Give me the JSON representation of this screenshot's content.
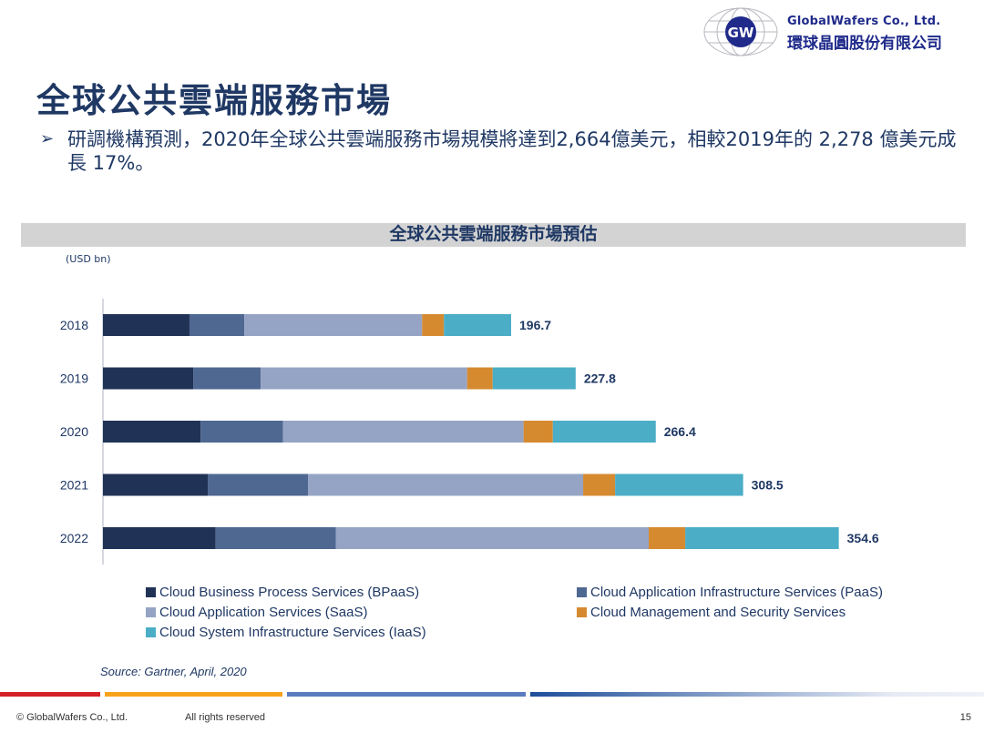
{
  "logo": {
    "mark": "GW",
    "name_en": "GlobalWafers Co., Ltd.",
    "name_zh": "環球晶圓股份有限公司"
  },
  "title": "全球公共雲端服務市場",
  "bullet": {
    "icon": "arrow-bullet-icon",
    "text": "研調機構預測，2020年全球公共雲端服務市場規模將達到2,664億美元，相較2019年的 2,278 億美元成長 17%。"
  },
  "chart_data": {
    "type": "bar",
    "orientation": "horizontal",
    "stacked": true,
    "title": "全球公共雲端服務市場預估",
    "ylabel": "(USD bn)",
    "xlabel": "",
    "categories": [
      "2018",
      "2019",
      "2020",
      "2021",
      "2022"
    ],
    "totals": [
      "196.7",
      "227.8",
      "266.4",
      "308.5",
      "354.6"
    ],
    "total_values": [
      196.7,
      227.8,
      266.4,
      308.5,
      354.6
    ],
    "xlim": [
      0,
      360
    ],
    "grid": false,
    "legend_position": "bottom",
    "series": [
      {
        "name": "Cloud Business Process Services (BPaaS)",
        "color": "#203356",
        "values": [
          41.7,
          43.5,
          47.1,
          50.5,
          54.2
        ]
      },
      {
        "name": "Cloud Application Infrastructure Services (PaaS)",
        "color": "#4f6892",
        "values": [
          26.4,
          32.5,
          39.6,
          48.3,
          58.0
        ]
      },
      {
        "name": "Cloud Application Services (SaaS)",
        "color": "#95a4c4",
        "values": [
          85.7,
          99.5,
          116.0,
          132.6,
          150.8
        ]
      },
      {
        "name": "Cloud Management and Security Services",
        "color": "#d68a30",
        "values": [
          10.5,
          12.3,
          14.1,
          15.4,
          17.6
        ]
      },
      {
        "name": "Cloud System Infrastructure Services (IaaS)",
        "color": "#4badc6",
        "values": [
          32.4,
          40.0,
          49.6,
          61.7,
          74.0
        ]
      }
    ]
  },
  "source": "Source: Gartner, April, 2020",
  "footer": {
    "copyright": "© GlobalWafers Co., Ltd.",
    "rights": "All rights reserved",
    "page": "15"
  }
}
